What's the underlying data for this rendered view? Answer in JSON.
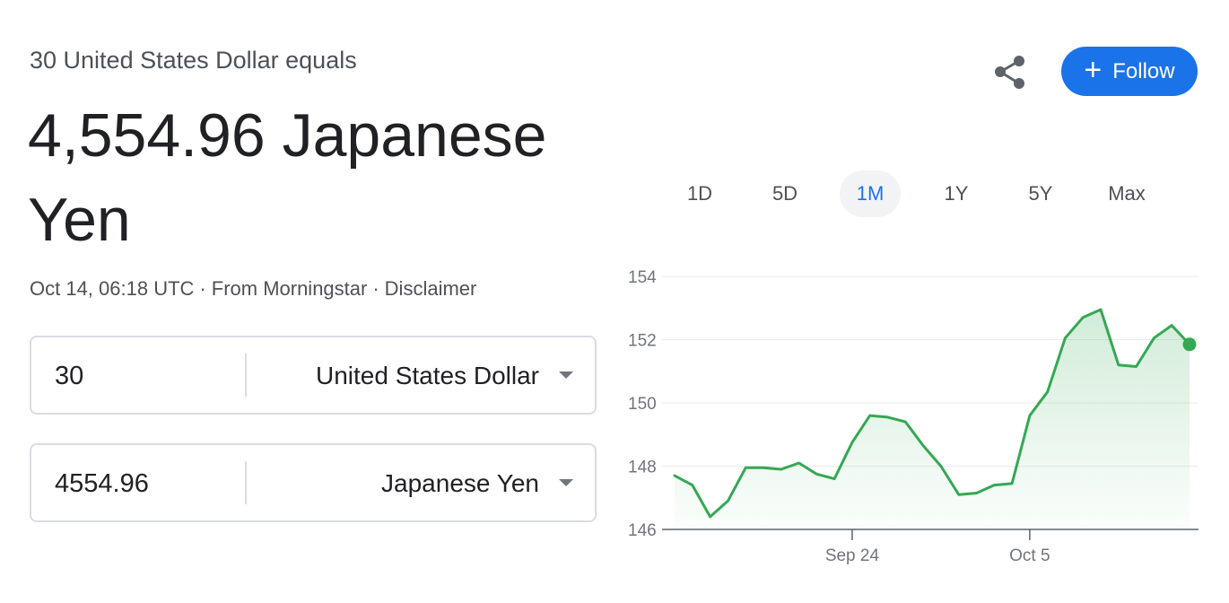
{
  "header": {
    "subtitle": "30 United States Dollar equals",
    "result": "4,554.96 Japanese Yen",
    "meta": {
      "timestamp": "Oct 14, 06:18 UTC",
      "source": "From Morningstar",
      "disclaimer": "Disclaimer"
    }
  },
  "converter": {
    "from": {
      "amount": "30",
      "currency": "United States Dollar"
    },
    "to": {
      "amount": "4554.96",
      "currency": "Japanese Yen"
    }
  },
  "actions": {
    "follow_label": "Follow",
    "share_icon": "share-icon"
  },
  "range_tabs": [
    {
      "label": "1D",
      "active": false
    },
    {
      "label": "5D",
      "active": false
    },
    {
      "label": "1M",
      "active": true
    },
    {
      "label": "1Y",
      "active": false
    },
    {
      "label": "5Y",
      "active": false
    },
    {
      "label": "Max",
      "active": false
    }
  ],
  "colors": {
    "accent": "#1a73e8",
    "line": "#34a853",
    "text": "#202124",
    "muted": "#4d5156"
  },
  "chart_data": {
    "type": "area",
    "x_ticks": [
      "Sep 24",
      "Oct 5"
    ],
    "y_ticks": [
      146,
      148,
      150,
      152,
      154
    ],
    "ylim": [
      146,
      154
    ],
    "grid": true,
    "values": [
      147.7,
      147.4,
      146.4,
      146.9,
      147.95,
      147.95,
      147.9,
      148.1,
      147.75,
      147.6,
      148.75,
      149.6,
      149.55,
      149.4,
      148.65,
      148.0,
      147.1,
      147.15,
      147.4,
      147.45,
      149.6,
      150.35,
      152.05,
      152.7,
      152.95,
      151.2,
      151.15,
      152.05,
      152.45,
      151.85
    ],
    "x_tick_index": [
      10,
      20
    ]
  }
}
